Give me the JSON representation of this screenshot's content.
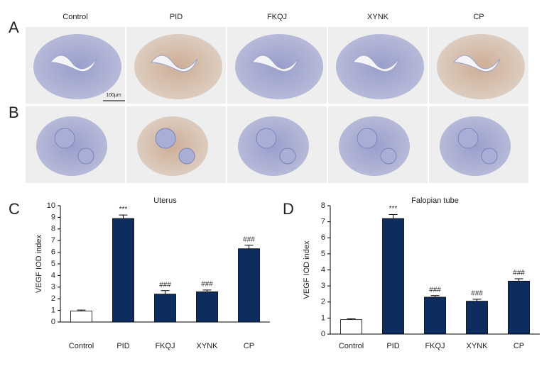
{
  "figure": {
    "panel_labels": [
      "A",
      "B",
      "C",
      "D"
    ],
    "columns": [
      "Control",
      "PID",
      "FKQJ",
      "XYNK",
      "CP"
    ],
    "scale_bar": "100μm"
  },
  "chart_data": [
    {
      "type": "bar",
      "title": "Uterus",
      "y_label": "VEGF IOD index",
      "categories": [
        "Control",
        "PID",
        "FKQJ",
        "XYNK",
        "CP"
      ],
      "values": [
        0.95,
        8.9,
        2.4,
        2.6,
        6.3
      ],
      "errors": [
        0.08,
        0.3,
        0.3,
        0.15,
        0.3
      ],
      "annotations": [
        null,
        "***",
        "###",
        "###",
        "###"
      ],
      "colors": [
        "#ffffff",
        "#0d2d5e",
        "#0d2d5e",
        "#0d2d5e",
        "#0d2d5e"
      ],
      "ylim": [
        0,
        10
      ],
      "yticks": [
        0,
        1,
        2,
        3,
        4,
        5,
        6,
        7,
        8,
        9,
        10
      ]
    },
    {
      "type": "bar",
      "title": "Falopian tube",
      "y_label": "VEGF IOD index",
      "categories": [
        "Control",
        "PID",
        "FKQJ",
        "XYNK",
        "CP"
      ],
      "values": [
        0.9,
        7.2,
        2.3,
        2.05,
        3.3
      ],
      "errors": [
        0.05,
        0.25,
        0.1,
        0.12,
        0.15
      ],
      "annotations": [
        null,
        "***",
        "###",
        "###",
        "###"
      ],
      "colors": [
        "#ffffff",
        "#0d2d5e",
        "#0d2d5e",
        "#0d2d5e",
        "#0d2d5e"
      ],
      "ylim": [
        0,
        8
      ],
      "yticks": [
        0,
        1,
        2,
        3,
        4,
        5,
        6,
        7,
        8
      ]
    }
  ]
}
